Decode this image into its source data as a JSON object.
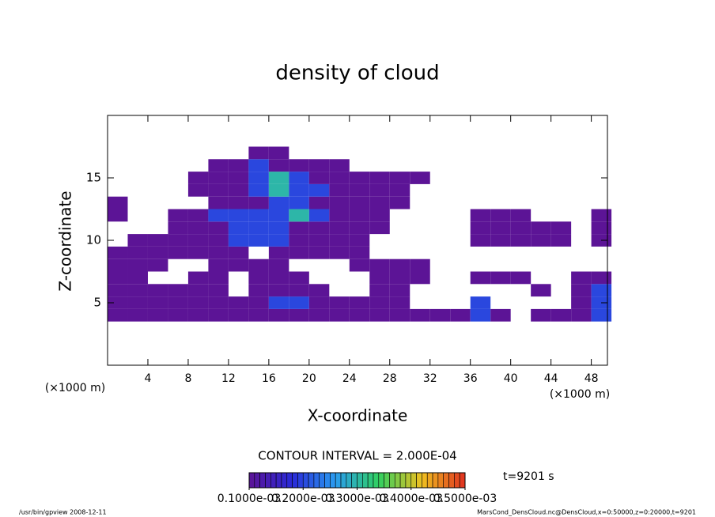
{
  "chart_data": {
    "type": "contour",
    "title": "density of cloud",
    "x_label": "X-coordinate",
    "y_label": "Z-coordinate",
    "x_unit": "(×1000 m)",
    "y_unit": "(×1000 m)",
    "xlim": [
      0,
      49.6
    ],
    "ylim": [
      0,
      20
    ],
    "xticks": [
      4,
      8,
      12,
      16,
      20,
      24,
      28,
      32,
      36,
      40,
      44,
      48
    ],
    "yticks": [
      5,
      10,
      15
    ],
    "x": [
      1,
      3,
      5,
      7,
      9,
      11,
      13,
      15,
      17,
      19,
      21,
      23,
      25,
      27,
      29,
      31,
      33,
      35,
      37,
      39,
      41,
      43,
      45,
      47,
      49
    ],
    "z": [
      4,
      5,
      6,
      7,
      8,
      9,
      10,
      11,
      12,
      13,
      14,
      15,
      16,
      17
    ],
    "values": [
      [
        0.0001,
        0.0001,
        0.0001,
        0.0001,
        0.0001,
        0.0001,
        0.0001,
        0.0001,
        0.0001,
        0.0001,
        0.0001,
        0.0001,
        0.0001,
        0.0001,
        0.0001,
        0.0001,
        0.0001,
        0.0001,
        0.0002,
        0.0001,
        null,
        0.0001,
        0.0001,
        0.0001,
        0.0002
      ],
      [
        0.0001,
        0.0001,
        0.0001,
        0.0001,
        0.0001,
        0.0001,
        0.0001,
        0.0001,
        0.0002,
        0.0002,
        0.0001,
        0.0001,
        0.0001,
        0.0001,
        0.0001,
        null,
        null,
        null,
        0.0002,
        null,
        null,
        null,
        null,
        0.0001,
        0.0002
      ],
      [
        0.0001,
        0.0001,
        0.0001,
        0.0001,
        0.0001,
        0.0001,
        null,
        0.0001,
        0.0001,
        0.0001,
        0.0001,
        null,
        null,
        0.0001,
        0.0001,
        null,
        null,
        null,
        null,
        null,
        null,
        0.0001,
        null,
        0.0001,
        0.0002
      ],
      [
        0.0001,
        0.0001,
        null,
        null,
        0.0001,
        0.0001,
        null,
        0.0001,
        0.0001,
        0.0001,
        null,
        null,
        null,
        0.0001,
        0.0001,
        0.0001,
        null,
        null,
        0.0001,
        0.0001,
        0.0001,
        null,
        null,
        0.0001,
        0.0001
      ],
      [
        0.0001,
        0.0001,
        0.0001,
        null,
        null,
        0.0001,
        0.0001,
        0.0001,
        0.0001,
        null,
        null,
        null,
        0.0001,
        0.0001,
        0.0001,
        0.0001,
        null,
        null,
        null,
        null,
        null,
        null,
        null,
        null,
        null
      ],
      [
        0.0001,
        0.0001,
        0.0001,
        0.0001,
        0.0001,
        0.0001,
        0.0001,
        null,
        0.0001,
        0.0001,
        0.0001,
        0.0001,
        0.0001,
        null,
        null,
        null,
        null,
        null,
        null,
        null,
        null,
        null,
        null,
        null,
        null
      ],
      [
        null,
        0.0001,
        0.0001,
        0.0001,
        0.0001,
        0.0001,
        0.0002,
        0.0002,
        0.0002,
        0.0001,
        0.0001,
        0.0001,
        0.0001,
        null,
        null,
        null,
        null,
        null,
        0.0001,
        0.0001,
        0.0001,
        0.0001,
        0.0001,
        null,
        0.0001
      ],
      [
        null,
        null,
        null,
        0.0001,
        0.0001,
        0.0001,
        0.0002,
        0.0002,
        0.0002,
        0.0001,
        0.0001,
        0.0001,
        0.0001,
        0.0001,
        null,
        null,
        null,
        null,
        0.0001,
        0.0001,
        0.0001,
        0.0001,
        0.0001,
        null,
        0.0001
      ],
      [
        0.0001,
        null,
        null,
        0.0001,
        0.0001,
        0.0002,
        0.0002,
        0.0002,
        0.0002,
        0.0003,
        0.0002,
        0.0001,
        0.0001,
        0.0001,
        null,
        null,
        null,
        null,
        0.0001,
        0.0001,
        0.0001,
        null,
        null,
        null,
        0.0001
      ],
      [
        0.0001,
        null,
        null,
        null,
        null,
        0.0001,
        0.0001,
        0.0001,
        0.0002,
        0.0002,
        0.0001,
        0.0001,
        0.0001,
        0.0001,
        0.0001,
        null,
        null,
        null,
        null,
        null,
        null,
        null,
        null,
        null,
        null
      ],
      [
        null,
        null,
        null,
        null,
        0.0001,
        0.0001,
        0.0001,
        0.0002,
        0.0003,
        0.0002,
        0.0002,
        0.0001,
        0.0001,
        0.0001,
        0.0001,
        null,
        null,
        null,
        null,
        null,
        null,
        null,
        null,
        null,
        null
      ],
      [
        null,
        null,
        null,
        null,
        0.0001,
        0.0001,
        0.0001,
        0.0002,
        0.0003,
        0.0002,
        0.0001,
        0.0001,
        0.0001,
        0.0001,
        0.0001,
        0.0001,
        null,
        null,
        null,
        null,
        null,
        null,
        null,
        null,
        null
      ],
      [
        null,
        null,
        null,
        null,
        null,
        0.0001,
        0.0001,
        0.0002,
        0.0001,
        0.0001,
        0.0001,
        0.0001,
        null,
        null,
        null,
        null,
        null,
        null,
        null,
        null,
        null,
        null,
        null,
        null,
        null
      ],
      [
        null,
        null,
        null,
        null,
        null,
        null,
        null,
        0.0001,
        0.0001,
        null,
        null,
        null,
        null,
        null,
        null,
        null,
        null,
        null,
        null,
        null,
        null,
        null,
        null,
        null,
        null
      ]
    ],
    "colormap": [
      "#5c1496",
      "#2a2ad8",
      "#2a9cf0",
      "#30d060",
      "#f0c020",
      "#e03020"
    ],
    "colorbar_lim": [
      0.0001,
      0.0005
    ],
    "colorbar_ticks": [
      {
        "value": 0.0001,
        "label": "0.1000e-03"
      },
      {
        "value": 0.0002,
        "label": "0.2000e-03"
      },
      {
        "value": 0.0003,
        "label": "0.3000e-03"
      },
      {
        "value": 0.0004,
        "label": "0.4000e-03"
      },
      {
        "value": 0.0005,
        "label": "0.5000e-03"
      }
    ],
    "contour_note": "CONTOUR INTERVAL = 2.000E-04",
    "time_label": "t=9201 s",
    "footer_left": "/usr/bin/gpview  2008-12-11",
    "footer_right": "MarsCond_DensCloud.nc@DensCloud,x=0:50000,z=0:20000,t=9201"
  }
}
